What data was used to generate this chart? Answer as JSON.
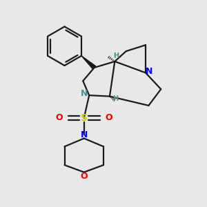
{
  "bg_color": "#e8e8e8",
  "bond_color": "#1a1a1a",
  "N_color": "#0000ee",
  "N_teal": "#4a9090",
  "O_color": "#ee0000",
  "S_color": "#cccc00",
  "H_color": "#4a9090",
  "figsize": [
    3.0,
    3.0
  ],
  "dpi": 100,
  "xlim": [
    0,
    10
  ],
  "ylim": [
    0,
    10
  ]
}
